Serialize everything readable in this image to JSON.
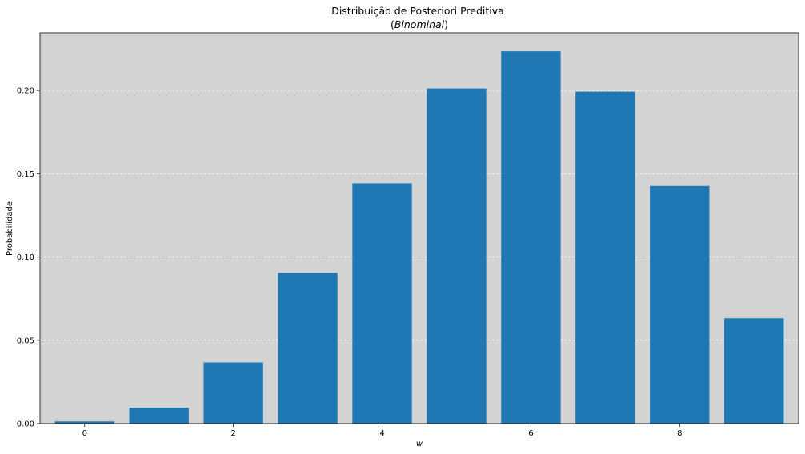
{
  "chart_data": {
    "type": "bar",
    "title": "Distribuição de Posteriori Preditiva",
    "subtitle_open": "(",
    "subtitle_italic": "Binominal",
    "subtitle_close": ")",
    "xlabel": "w",
    "ylabel": "Probabilidade",
    "x": [
      0,
      1,
      2,
      3,
      4,
      5,
      6,
      7,
      8,
      9
    ],
    "values": [
      0.0013,
      0.0095,
      0.0367,
      0.0905,
      0.1442,
      0.2012,
      0.2235,
      0.1993,
      0.1426,
      0.0632
    ],
    "xlim": [
      -0.6,
      9.6
    ],
    "ylim": [
      0,
      0.2346
    ],
    "xticks": [
      0,
      2,
      4,
      6,
      8
    ],
    "xtick_labels": [
      "0",
      "2",
      "4",
      "6",
      "8"
    ],
    "yticks": [
      0,
      0.05,
      0.1,
      0.15,
      0.2
    ],
    "ytick_labels": [
      "0.00",
      "0.05",
      "0.10",
      "0.15",
      "0.20"
    ],
    "grid": "y-dashed",
    "colors": {
      "bar": "#1f77b4",
      "plot_background": "#d3d3d3",
      "grid": "#ffffff"
    }
  }
}
